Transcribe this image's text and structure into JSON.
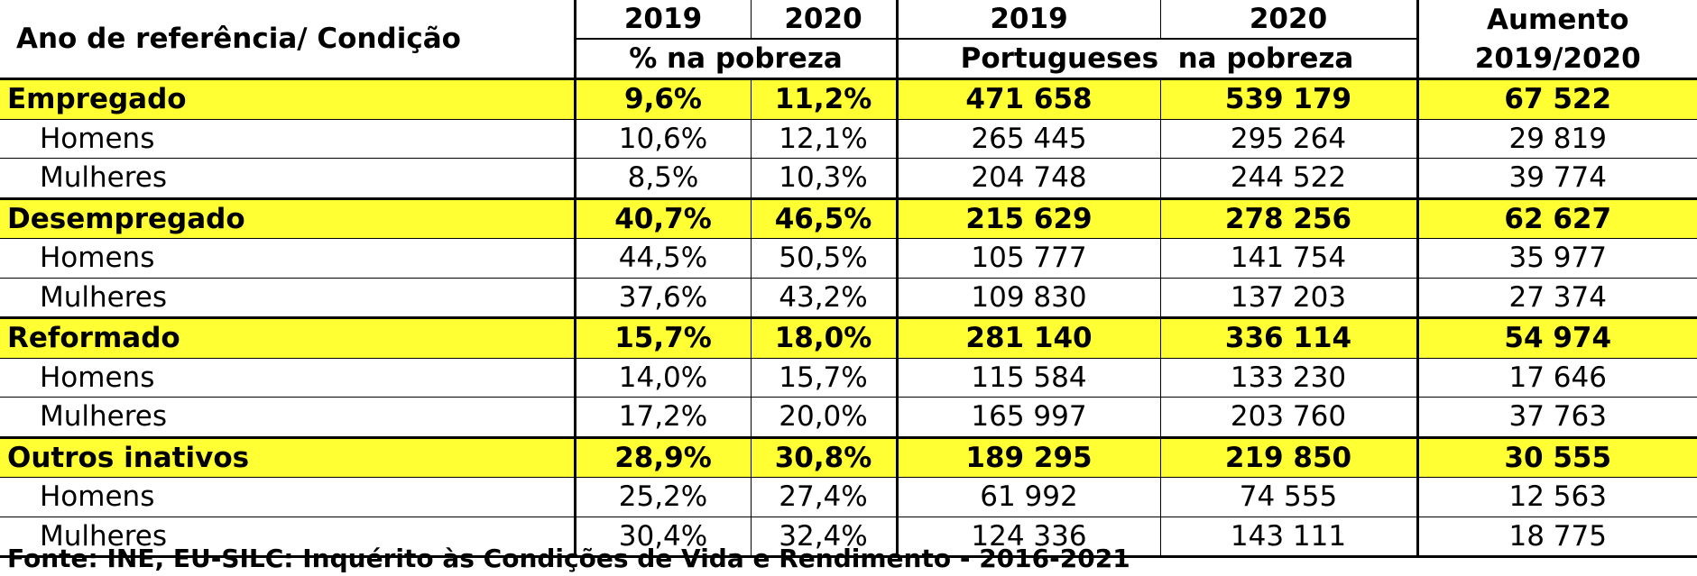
{
  "chart_data": {
    "type": "table",
    "header": {
      "row_label": "Ano de referência/ Condição",
      "years": [
        "2019",
        "2020",
        "2019",
        "2020"
      ],
      "group_pct": "% na pobreza",
      "group_pt": "Portugueses  na pobreza",
      "increase_line1": "Aumento",
      "increase_line2": "2019/2020"
    },
    "rows": [
      {
        "label": "Empregado",
        "pct2019": "9,6%",
        "pct2020": "11,2%",
        "pt2019": "471 658",
        "pt2020": "539 179",
        "increase": "67 522"
      },
      {
        "label": "Homens",
        "pct2019": "10,6%",
        "pct2020": "12,1%",
        "pt2019": "265 445",
        "pt2020": "295 264",
        "increase": "29 819"
      },
      {
        "label": "Mulheres",
        "pct2019": "8,5%",
        "pct2020": "10,3%",
        "pt2019": "204 748",
        "pt2020": "244 522",
        "increase": "39 774"
      },
      {
        "label": "Desempregado",
        "pct2019": "40,7%",
        "pct2020": "46,5%",
        "pt2019": "215 629",
        "pt2020": "278 256",
        "increase": "62 627"
      },
      {
        "label": "Homens",
        "pct2019": "44,5%",
        "pct2020": "50,5%",
        "pt2019": "105 777",
        "pt2020": "141 754",
        "increase": "35 977"
      },
      {
        "label": "Mulheres",
        "pct2019": "37,6%",
        "pct2020": "43,2%",
        "pt2019": "109 830",
        "pt2020": "137 203",
        "increase": "27 374"
      },
      {
        "label": "Reformado",
        "pct2019": "15,7%",
        "pct2020": "18,0%",
        "pt2019": "281 140",
        "pt2020": "336 114",
        "increase": "54 974"
      },
      {
        "label": "Homens",
        "pct2019": "14,0%",
        "pct2020": "15,7%",
        "pt2019": "115 584",
        "pt2020": "133 230",
        "increase": "17 646"
      },
      {
        "label": "Mulheres",
        "pct2019": "17,2%",
        "pct2020": "20,0%",
        "pt2019": "165 997",
        "pt2020": "203 760",
        "increase": "37 763"
      },
      {
        "label": "Outros inativos",
        "pct2019": "28,9%",
        "pct2020": "30,8%",
        "pt2019": "189 295",
        "pt2020": "219 850",
        "increase": "30 555"
      },
      {
        "label": "Homens",
        "pct2019": "25,2%",
        "pct2020": "27,4%",
        "pt2019": "61 992",
        "pt2020": "74 555",
        "increase": "12 563"
      },
      {
        "label": "Mulheres",
        "pct2019": "30,4%",
        "pct2020": "32,4%",
        "pt2019": "124 336",
        "pt2020": "143 111",
        "increase": "18 775"
      }
    ],
    "source": "Fonte: INE, EU-SILC: Inquérito às Condições de Vida e Rendimento - 2016-2021",
    "highlight_color": "#ffff33"
  }
}
